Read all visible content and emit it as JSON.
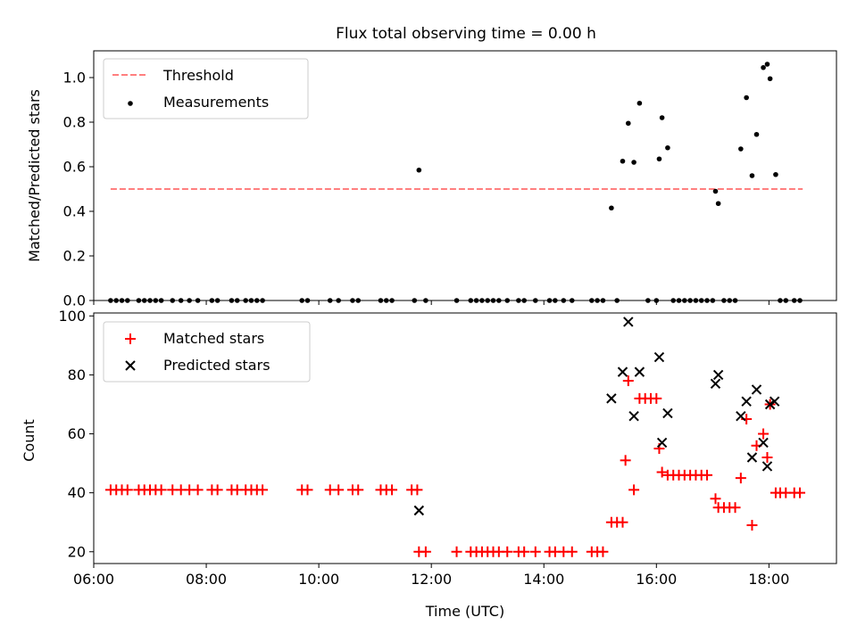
{
  "figure": {
    "title": "Flux total observing time = 0.00 h"
  },
  "chart_data": [
    {
      "type": "scatter",
      "ylabel": "Matched/Predicted stars",
      "ylim": [
        0,
        1.12
      ],
      "xlim": [
        6.0,
        19.2
      ],
      "yticks": [
        0.0,
        0.2,
        0.4,
        0.6,
        0.8,
        1.0
      ],
      "yticklabels": [
        "0.0",
        "0.2",
        "0.4",
        "0.6",
        "0.8",
        "1.0"
      ],
      "legend_position": "top-left",
      "threshold": {
        "name": "Threshold",
        "value": 0.5,
        "x_range": [
          6.3,
          18.6
        ],
        "color": "#ff7f7f"
      },
      "series": [
        {
          "name": "Measurements",
          "color": "#000000",
          "marker": "dot",
          "points": [
            [
              6.3,
              0
            ],
            [
              6.4,
              0
            ],
            [
              6.5,
              0
            ],
            [
              6.6,
              0
            ],
            [
              6.8,
              0
            ],
            [
              6.9,
              0
            ],
            [
              7.0,
              0
            ],
            [
              7.1,
              0
            ],
            [
              7.2,
              0
            ],
            [
              7.4,
              0
            ],
            [
              7.55,
              0
            ],
            [
              7.7,
              0
            ],
            [
              7.85,
              0
            ],
            [
              8.1,
              0
            ],
            [
              8.2,
              0
            ],
            [
              8.45,
              0
            ],
            [
              8.55,
              0
            ],
            [
              8.7,
              0
            ],
            [
              8.8,
              0
            ],
            [
              8.9,
              0
            ],
            [
              9.0,
              0
            ],
            [
              9.7,
              0
            ],
            [
              9.8,
              0
            ],
            [
              10.2,
              0
            ],
            [
              10.35,
              0
            ],
            [
              10.6,
              0
            ],
            [
              10.7,
              0
            ],
            [
              11.1,
              0
            ],
            [
              11.2,
              0
            ],
            [
              11.3,
              0
            ],
            [
              11.7,
              0
            ],
            [
              11.78,
              0.585
            ],
            [
              11.9,
              0
            ],
            [
              12.45,
              0
            ],
            [
              12.7,
              0
            ],
            [
              12.8,
              0
            ],
            [
              12.9,
              0
            ],
            [
              13.0,
              0
            ],
            [
              13.1,
              0
            ],
            [
              13.2,
              0
            ],
            [
              13.35,
              0
            ],
            [
              13.55,
              0
            ],
            [
              13.65,
              0
            ],
            [
              13.85,
              0
            ],
            [
              14.1,
              0
            ],
            [
              14.2,
              0
            ],
            [
              14.35,
              0
            ],
            [
              14.5,
              0
            ],
            [
              14.85,
              0
            ],
            [
              14.95,
              0
            ],
            [
              15.05,
              0
            ],
            [
              15.2,
              0.415
            ],
            [
              15.3,
              0
            ],
            [
              15.4,
              0.625
            ],
            [
              15.5,
              0.795
            ],
            [
              15.6,
              0.62
            ],
            [
              15.7,
              0.885
            ],
            [
              15.85,
              0
            ],
            [
              16.0,
              0
            ],
            [
              16.05,
              0.635
            ],
            [
              16.1,
              0.82
            ],
            [
              16.2,
              0.685
            ],
            [
              16.3,
              0
            ],
            [
              16.4,
              0
            ],
            [
              16.5,
              0
            ],
            [
              16.6,
              0
            ],
            [
              16.7,
              0
            ],
            [
              16.8,
              0
            ],
            [
              16.9,
              0
            ],
            [
              17.0,
              0
            ],
            [
              17.05,
              0.49
            ],
            [
              17.1,
              0.435
            ],
            [
              17.2,
              0
            ],
            [
              17.3,
              0
            ],
            [
              17.4,
              0
            ],
            [
              17.5,
              0.68
            ],
            [
              17.6,
              0.91
            ],
            [
              17.7,
              0.56
            ],
            [
              17.78,
              0.745
            ],
            [
              17.9,
              1.045
            ],
            [
              17.97,
              1.06
            ],
            [
              18.02,
              0.995
            ],
            [
              18.12,
              0.565
            ],
            [
              18.2,
              0
            ],
            [
              18.3,
              0
            ],
            [
              18.45,
              0
            ],
            [
              18.55,
              0
            ]
          ]
        }
      ]
    },
    {
      "type": "scatter",
      "xlabel": "Time (UTC)",
      "ylabel": "Count",
      "ylim": [
        16,
        101
      ],
      "xlim": [
        6.0,
        19.2
      ],
      "yticks": [
        20,
        40,
        60,
        80,
        100
      ],
      "yticklabels": [
        "20",
        "40",
        "60",
        "80",
        "100"
      ],
      "xticks": [
        6,
        8,
        10,
        12,
        14,
        16,
        18
      ],
      "xticklabels": [
        "06:00",
        "08:00",
        "10:00",
        "12:00",
        "14:00",
        "16:00",
        "18:00"
      ],
      "legend_position": "top-left",
      "series": [
        {
          "name": "Matched stars",
          "color": "#ff0000",
          "marker": "plus",
          "points": [
            [
              6.3,
              41
            ],
            [
              6.4,
              41
            ],
            [
              6.5,
              41
            ],
            [
              6.6,
              41
            ],
            [
              6.8,
              41
            ],
            [
              6.9,
              41
            ],
            [
              7.0,
              41
            ],
            [
              7.1,
              41
            ],
            [
              7.2,
              41
            ],
            [
              7.4,
              41
            ],
            [
              7.55,
              41
            ],
            [
              7.7,
              41
            ],
            [
              7.85,
              41
            ],
            [
              8.1,
              41
            ],
            [
              8.2,
              41
            ],
            [
              8.45,
              41
            ],
            [
              8.55,
              41
            ],
            [
              8.7,
              41
            ],
            [
              8.8,
              41
            ],
            [
              8.9,
              41
            ],
            [
              9.0,
              41
            ],
            [
              9.7,
              41
            ],
            [
              9.8,
              41
            ],
            [
              10.2,
              41
            ],
            [
              10.35,
              41
            ],
            [
              10.6,
              41
            ],
            [
              10.7,
              41
            ],
            [
              11.1,
              41
            ],
            [
              11.2,
              41
            ],
            [
              11.3,
              41
            ],
            [
              11.65,
              41
            ],
            [
              11.75,
              41
            ],
            [
              11.78,
              20
            ],
            [
              11.9,
              20
            ],
            [
              12.45,
              20
            ],
            [
              12.7,
              20
            ],
            [
              12.8,
              20
            ],
            [
              12.9,
              20
            ],
            [
              13.0,
              20
            ],
            [
              13.1,
              20
            ],
            [
              13.2,
              20
            ],
            [
              13.35,
              20
            ],
            [
              13.55,
              20
            ],
            [
              13.65,
              20
            ],
            [
              13.85,
              20
            ],
            [
              14.1,
              20
            ],
            [
              14.2,
              20
            ],
            [
              14.35,
              20
            ],
            [
              14.5,
              20
            ],
            [
              14.85,
              20
            ],
            [
              14.95,
              20
            ],
            [
              15.05,
              20
            ],
            [
              15.2,
              30
            ],
            [
              15.3,
              30
            ],
            [
              15.4,
              30
            ],
            [
              15.45,
              51
            ],
            [
              15.5,
              78
            ],
            [
              15.6,
              41
            ],
            [
              15.7,
              72
            ],
            [
              15.8,
              72
            ],
            [
              15.9,
              72
            ],
            [
              16.0,
              72
            ],
            [
              16.05,
              55
            ],
            [
              16.1,
              47
            ],
            [
              16.2,
              46
            ],
            [
              16.3,
              46
            ],
            [
              16.4,
              46
            ],
            [
              16.5,
              46
            ],
            [
              16.6,
              46
            ],
            [
              16.7,
              46
            ],
            [
              16.8,
              46
            ],
            [
              16.9,
              46
            ],
            [
              17.05,
              38
            ],
            [
              17.1,
              35
            ],
            [
              17.2,
              35
            ],
            [
              17.3,
              35
            ],
            [
              17.4,
              35
            ],
            [
              17.5,
              45
            ],
            [
              17.6,
              65
            ],
            [
              17.7,
              29
            ],
            [
              17.78,
              56
            ],
            [
              17.9,
              60
            ],
            [
              17.97,
              52
            ],
            [
              18.02,
              70
            ],
            [
              18.12,
              40
            ],
            [
              18.2,
              40
            ],
            [
              18.3,
              40
            ],
            [
              18.45,
              40
            ],
            [
              18.55,
              40
            ]
          ]
        },
        {
          "name": "Predicted stars",
          "color": "#000000",
          "marker": "x",
          "points": [
            [
              11.78,
              34
            ],
            [
              15.2,
              72
            ],
            [
              15.4,
              81
            ],
            [
              15.5,
              98
            ],
            [
              15.6,
              66
            ],
            [
              15.7,
              81
            ],
            [
              16.05,
              86
            ],
            [
              16.1,
              57
            ],
            [
              16.2,
              67
            ],
            [
              17.05,
              77
            ],
            [
              17.1,
              80
            ],
            [
              17.5,
              66
            ],
            [
              17.6,
              71
            ],
            [
              17.7,
              52
            ],
            [
              17.78,
              75
            ],
            [
              17.9,
              57
            ],
            [
              17.97,
              49
            ],
            [
              18.02,
              70
            ],
            [
              18.1,
              71
            ]
          ]
        }
      ]
    }
  ]
}
